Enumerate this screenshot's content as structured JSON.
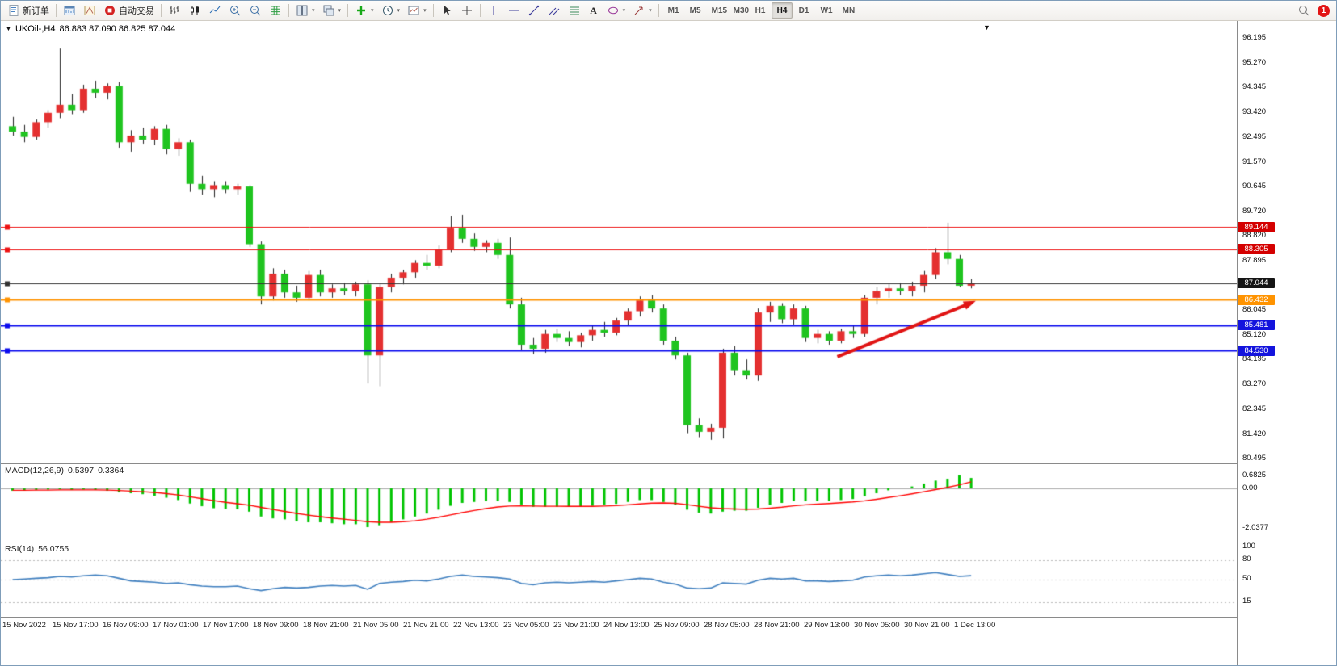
{
  "toolbar": {
    "new_order_label": "新订单",
    "autotrade_label": "自动交易",
    "timeframes": [
      "M1",
      "M5",
      "M15",
      "M30",
      "H1",
      "H4",
      "D1",
      "W1",
      "MN"
    ],
    "active_timeframe": "H4",
    "notification_count": "1",
    "icon_glyphs": {
      "dropdown": "▾",
      "text_tool": "A"
    }
  },
  "chart_header": {
    "title": "UKOil-,H4",
    "ohlc": "86.883 87.090 86.825 87.044",
    "collapse_glyph": "▼",
    "scroll_end_glyph": "▼"
  },
  "price_axis": {
    "labels": [
      {
        "text": "96.195",
        "value": 96.195
      },
      {
        "text": "95.270",
        "value": 95.27
      },
      {
        "text": "94.345",
        "value": 94.345
      },
      {
        "text": "93.420",
        "value": 93.42
      },
      {
        "text": "92.495",
        "value": 92.495
      },
      {
        "text": "91.570",
        "value": 91.57
      },
      {
        "text": "90.645",
        "value": 90.645
      },
      {
        "text": "89.720",
        "value": 89.72
      },
      {
        "text": "88.820",
        "value": 88.82
      },
      {
        "text": "87.895",
        "value": 87.895
      },
      {
        "text": "86.045",
        "value": 86.045
      },
      {
        "text": "85.120",
        "value": 85.12
      },
      {
        "text": "84.195",
        "value": 84.195
      },
      {
        "text": "83.270",
        "value": 83.27
      },
      {
        "text": "82.345",
        "value": 82.345
      },
      {
        "text": "81.420",
        "value": 81.42
      },
      {
        "text": "80.495",
        "value": 80.495
      }
    ]
  },
  "levels": [
    {
      "text": "89.144",
      "value": 89.144,
      "line_color": "#ee1111",
      "badge_color": "#d40000",
      "thickness": 1,
      "role": "resistance"
    },
    {
      "text": "88.305",
      "value": 88.305,
      "line_color": "#ee1111",
      "badge_color": "#d40000",
      "thickness": 1,
      "role": "resistance"
    },
    {
      "text": "87.044",
      "value": 87.044,
      "line_color": "#303030",
      "badge_color": "#151515",
      "thickness": 1,
      "role": "current-price"
    },
    {
      "text": "86.432",
      "value": 86.432,
      "line_color": "#ff9300",
      "badge_color": "#ff9300",
      "thickness": 2,
      "role": "level"
    },
    {
      "text": "85.481",
      "value": 85.481,
      "line_color": "#0b0bee",
      "badge_color": "#1414dd",
      "thickness": 2,
      "role": "support"
    },
    {
      "text": "84.530",
      "value": 84.53,
      "line_color": "#0b0bee",
      "badge_color": "#1414dd",
      "thickness": 2,
      "role": "support"
    }
  ],
  "macd_panel": {
    "name": "MACD(12,26,9)",
    "value_main": "0.5397",
    "value_signal": "0.3364",
    "axis": [
      {
        "text": "0.6825",
        "value": 0.6825
      },
      {
        "text": "0.00",
        "value": 0
      },
      {
        "text": "-2.0377",
        "value": -2.0377
      }
    ]
  },
  "rsi_panel": {
    "name": "RSI(14)",
    "value": "56.0755",
    "axis": [
      {
        "text": "100",
        "value": 100
      },
      {
        "text": "80",
        "value": 80
      },
      {
        "text": "50",
        "value": 50
      },
      {
        "text": "15",
        "value": 15
      }
    ],
    "levels": [
      80,
      50,
      15
    ]
  },
  "chart_data": {
    "type": "candlestick",
    "symbol": "UKOil-",
    "timeframe": "H4",
    "ohlc_display": {
      "open": "86.883",
      "high": "87.090",
      "low": "86.825",
      "close": "87.044"
    },
    "y_axis_visible_range": [
      80.3,
      96.85
    ],
    "x_labels": [
      "15 Nov 2022",
      "15 Nov 17:00",
      "16 Nov 09:00",
      "17 Nov 01:00",
      "17 Nov 17:00",
      "18 Nov 09:00",
      "18 Nov 21:00",
      "21 Nov 05:00",
      "21 Nov 21:00",
      "22 Nov 13:00",
      "23 Nov 05:00",
      "23 Nov 21:00",
      "24 Nov 13:00",
      "25 Nov 09:00",
      "28 Nov 05:00",
      "28 Nov 21:00",
      "29 Nov 13:00",
      "30 Nov 05:00",
      "30 Nov 21:00",
      "1 Dec 13:00"
    ],
    "colors": {
      "up": "#e43030",
      "down": "#1fc41f",
      "wick": "#222222",
      "macd_hist": "#00c400",
      "macd_signal": "#ff0000",
      "rsi_line": "#3f7fbf"
    },
    "candles": [
      [
        92.9,
        93.25,
        92.55,
        92.7
      ],
      [
        92.7,
        92.95,
        92.3,
        92.5
      ],
      [
        92.5,
        93.15,
        92.4,
        93.05
      ],
      [
        93.05,
        93.5,
        92.85,
        93.4
      ],
      [
        93.4,
        95.8,
        93.2,
        93.7
      ],
      [
        93.7,
        94.1,
        93.35,
        93.5
      ],
      [
        93.5,
        94.45,
        93.4,
        94.3
      ],
      [
        94.3,
        94.6,
        93.95,
        94.15
      ],
      [
        94.15,
        94.5,
        93.9,
        94.4
      ],
      [
        94.4,
        94.55,
        92.1,
        92.3
      ],
      [
        92.3,
        92.75,
        91.95,
        92.55
      ],
      [
        92.55,
        92.85,
        92.25,
        92.4
      ],
      [
        92.4,
        92.9,
        92.2,
        92.8
      ],
      [
        92.8,
        92.95,
        91.85,
        92.05
      ],
      [
        92.05,
        92.45,
        91.8,
        92.3
      ],
      [
        92.3,
        92.4,
        90.45,
        90.75
      ],
      [
        90.75,
        91.05,
        90.35,
        90.55
      ],
      [
        90.55,
        90.85,
        90.25,
        90.7
      ],
      [
        90.7,
        90.85,
        90.4,
        90.55
      ],
      [
        90.55,
        90.75,
        90.35,
        90.65
      ],
      [
        90.65,
        90.7,
        88.4,
        88.5
      ],
      [
        88.5,
        88.6,
        86.25,
        86.55
      ],
      [
        86.55,
        87.6,
        86.4,
        87.4
      ],
      [
        87.4,
        87.55,
        86.5,
        86.7
      ],
      [
        86.7,
        86.95,
        86.35,
        86.5
      ],
      [
        86.5,
        87.5,
        86.4,
        87.35
      ],
      [
        87.35,
        87.55,
        86.55,
        86.7
      ],
      [
        86.7,
        87.0,
        86.5,
        86.85
      ],
      [
        86.85,
        87.05,
        86.6,
        86.75
      ],
      [
        86.75,
        87.1,
        86.55,
        87.0
      ],
      [
        87.0,
        87.15,
        83.3,
        84.35
      ],
      [
        84.35,
        87.0,
        83.2,
        86.9
      ],
      [
        86.9,
        87.4,
        86.7,
        87.25
      ],
      [
        87.25,
        87.55,
        87.0,
        87.45
      ],
      [
        87.45,
        87.9,
        87.25,
        87.8
      ],
      [
        87.8,
        88.1,
        87.55,
        87.7
      ],
      [
        87.7,
        88.45,
        87.6,
        88.3
      ],
      [
        88.3,
        89.55,
        88.2,
        89.1
      ],
      [
        89.1,
        89.6,
        88.55,
        88.7
      ],
      [
        88.7,
        88.9,
        88.25,
        88.4
      ],
      [
        88.4,
        88.65,
        88.2,
        88.55
      ],
      [
        88.55,
        88.7,
        87.95,
        88.1
      ],
      [
        88.1,
        88.75,
        86.1,
        86.25
      ],
      [
        86.25,
        86.5,
        84.55,
        84.75
      ],
      [
        84.75,
        85.0,
        84.4,
        84.6
      ],
      [
        84.6,
        85.3,
        84.45,
        85.15
      ],
      [
        85.15,
        85.35,
        84.85,
        85.0
      ],
      [
        85.0,
        85.25,
        84.7,
        84.85
      ],
      [
        84.85,
        85.2,
        84.65,
        85.1
      ],
      [
        85.1,
        85.45,
        84.9,
        85.3
      ],
      [
        85.3,
        85.6,
        85.05,
        85.2
      ],
      [
        85.2,
        85.75,
        85.1,
        85.65
      ],
      [
        85.65,
        86.1,
        85.45,
        86.0
      ],
      [
        86.0,
        86.55,
        85.8,
        86.4
      ],
      [
        86.4,
        86.6,
        85.95,
        86.1
      ],
      [
        86.1,
        86.25,
        84.75,
        84.9
      ],
      [
        84.9,
        85.05,
        84.2,
        84.35
      ],
      [
        84.35,
        84.45,
        81.45,
        81.75
      ],
      [
        81.75,
        82.0,
        81.3,
        81.5
      ],
      [
        81.5,
        81.8,
        81.2,
        81.65
      ],
      [
        81.65,
        84.6,
        81.25,
        84.45
      ],
      [
        84.45,
        84.7,
        83.6,
        83.8
      ],
      [
        83.8,
        84.2,
        83.45,
        83.6
      ],
      [
        83.6,
        86.1,
        83.4,
        85.95
      ],
      [
        85.95,
        86.35,
        85.6,
        86.2
      ],
      [
        86.2,
        86.3,
        85.55,
        85.7
      ],
      [
        85.7,
        86.25,
        85.5,
        86.1
      ],
      [
        86.1,
        86.2,
        84.85,
        85.0
      ],
      [
        85.0,
        85.3,
        84.8,
        85.15
      ],
      [
        85.15,
        85.25,
        84.75,
        84.9
      ],
      [
        84.9,
        85.35,
        84.8,
        85.25
      ],
      [
        85.25,
        85.45,
        85.0,
        85.15
      ],
      [
        85.15,
        86.6,
        85.05,
        86.5
      ],
      [
        86.5,
        86.9,
        86.25,
        86.75
      ],
      [
        86.75,
        87.0,
        86.5,
        86.85
      ],
      [
        86.85,
        87.05,
        86.6,
        86.75
      ],
      [
        86.75,
        87.1,
        86.55,
        86.95
      ],
      [
        86.95,
        87.5,
        86.7,
        87.35
      ],
      [
        87.35,
        88.35,
        87.2,
        88.2
      ],
      [
        88.2,
        89.3,
        87.75,
        87.95
      ],
      [
        87.95,
        88.1,
        86.9,
        86.95
      ],
      [
        86.95,
        87.2,
        86.85,
        87.04
      ]
    ],
    "indicators": {
      "macd": {
        "params": "12,26,9",
        "histogram": [
          -0.12,
          -0.1,
          -0.08,
          -0.06,
          -0.05,
          -0.08,
          -0.06,
          -0.08,
          -0.12,
          -0.2,
          -0.25,
          -0.3,
          -0.38,
          -0.48,
          -0.6,
          -0.78,
          -0.92,
          -1.02,
          -1.06,
          -1.08,
          -1.2,
          -1.45,
          -1.55,
          -1.6,
          -1.7,
          -1.75,
          -1.75,
          -1.8,
          -1.85,
          -1.85,
          -2.0,
          -1.9,
          -1.75,
          -1.6,
          -1.45,
          -1.3,
          -1.1,
          -0.9,
          -0.75,
          -0.7,
          -0.65,
          -0.65,
          -0.7,
          -0.85,
          -0.95,
          -0.95,
          -0.95,
          -0.95,
          -0.95,
          -0.9,
          -0.85,
          -0.8,
          -0.7,
          -0.6,
          -0.6,
          -0.7,
          -0.85,
          -1.1,
          -1.25,
          -1.3,
          -1.2,
          -1.15,
          -1.15,
          -1.0,
          -0.85,
          -0.75,
          -0.65,
          -0.65,
          -0.65,
          -0.65,
          -0.6,
          -0.55,
          -0.4,
          -0.25,
          -0.1,
          0.0,
          0.1,
          0.25,
          0.4,
          0.5,
          0.6825,
          0.5397
        ],
        "signal": [
          -0.1,
          -0.1,
          -0.09,
          -0.09,
          -0.08,
          -0.08,
          -0.08,
          -0.08,
          -0.09,
          -0.11,
          -0.14,
          -0.17,
          -0.21,
          -0.27,
          -0.34,
          -0.43,
          -0.53,
          -0.63,
          -0.72,
          -0.79,
          -0.87,
          -0.98,
          -1.09,
          -1.19,
          -1.29,
          -1.38,
          -1.46,
          -1.53,
          -1.59,
          -1.65,
          -1.72,
          -1.75,
          -1.75,
          -1.72,
          -1.67,
          -1.59,
          -1.49,
          -1.37,
          -1.25,
          -1.14,
          -1.04,
          -0.96,
          -0.91,
          -0.9,
          -0.91,
          -0.92,
          -0.92,
          -0.93,
          -0.93,
          -0.93,
          -0.91,
          -0.89,
          -0.85,
          -0.8,
          -0.76,
          -0.75,
          -0.77,
          -0.84,
          -0.92,
          -1.0,
          -1.04,
          -1.06,
          -1.08,
          -1.06,
          -1.02,
          -0.97,
          -0.9,
          -0.85,
          -0.81,
          -0.78,
          -0.74,
          -0.7,
          -0.64,
          -0.56,
          -0.47,
          -0.38,
          -0.28,
          -0.17,
          -0.06,
          0.05,
          0.18,
          0.3364
        ]
      },
      "rsi": {
        "period": 14,
        "values": [
          50,
          51,
          52,
          53,
          55,
          54,
          56,
          57,
          56,
          52,
          48,
          47,
          46,
          44,
          45,
          42,
          40,
          39,
          39,
          40,
          36,
          33,
          36,
          38,
          37,
          38,
          40,
          41,
          40,
          41,
          35,
          44,
          46,
          47,
          49,
          48,
          51,
          55,
          57,
          55,
          54,
          53,
          51,
          44,
          42,
          45,
          46,
          45,
          46,
          47,
          46,
          48,
          50,
          52,
          51,
          46,
          43,
          37,
          36,
          37,
          45,
          44,
          43,
          49,
          52,
          51,
          52,
          48,
          48,
          47,
          48,
          49,
          54,
          56,
          57,
          56,
          57,
          59,
          61,
          58,
          55,
          56.08
        ]
      }
    },
    "annotations": {
      "trend_arrow": {
        "from_bar": 70,
        "from_price": 84.3,
        "to_bar": 81.7,
        "to_price": 86.38,
        "color": "#e01414"
      }
    }
  }
}
